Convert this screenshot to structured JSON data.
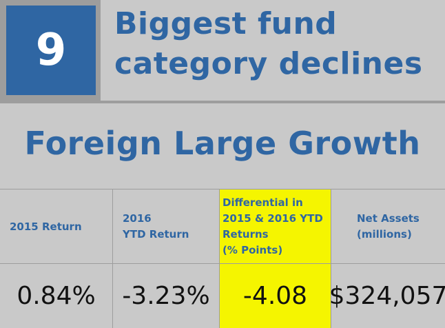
{
  "rank": "9",
  "title": "Biggest fund\ncategory declines",
  "category": "Foreign Large Growth",
  "table": {
    "columns": [
      {
        "header": "2015 Return",
        "value": "0.84%"
      },
      {
        "header": "2016\nYTD Return",
        "value": "-3.23%"
      },
      {
        "header": "Differential in\n2015 & 2016 YTD\nReturns\n(% Points)",
        "value": "-4.08"
      },
      {
        "header": "Net Assets\n(millions)",
        "value": "$324,057"
      }
    ]
  },
  "colors": {
    "accent": "#2f66a3",
    "background": "#c9c9c9",
    "highlight": "#f5f500",
    "rule": "#9d9d9d"
  }
}
